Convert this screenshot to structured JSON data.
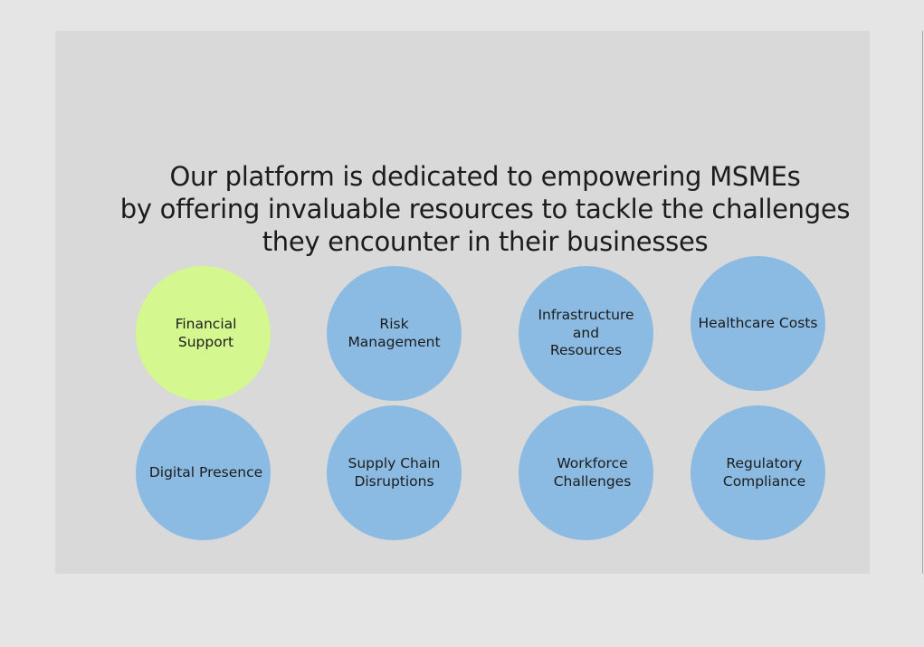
{
  "colors": {
    "page_background": "#e5e5e5",
    "frame_background": "#d9d9d9",
    "circle_default": "#8bbbe2",
    "circle_highlight": "#d5f78f",
    "text": "#1c1c1c"
  },
  "headline": {
    "line1": "Our platform is dedicated to empowering MSMEs",
    "line2": "by offering invaluable resources to tackle the challenges",
    "line3": "they encounter in their businesses"
  },
  "challenges": [
    {
      "label": "Financial Support",
      "highlighted": true
    },
    {
      "label": "Risk Management",
      "highlighted": false
    },
    {
      "label": "Infrastructure\nand\nResources",
      "highlighted": false
    },
    {
      "label": "Healthcare Costs",
      "highlighted": false
    },
    {
      "label": "Digital Presence",
      "highlighted": false
    },
    {
      "label": "Supply Chain\nDisruptions",
      "highlighted": false
    },
    {
      "label": "Workforce\nChallenges",
      "highlighted": false
    },
    {
      "label": "Regulatory\nCompliance",
      "highlighted": false
    }
  ]
}
